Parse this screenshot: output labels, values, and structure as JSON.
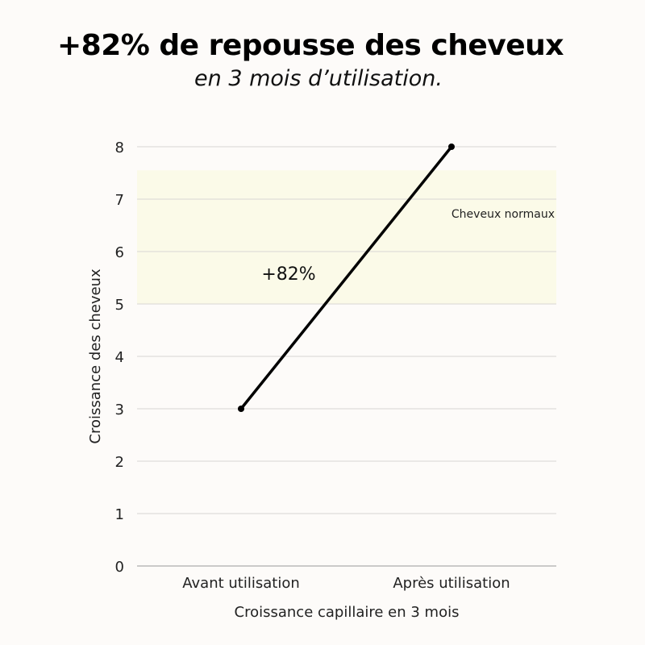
{
  "chart_data": {
    "type": "line",
    "title": "+82% de repousse des cheveux",
    "subtitle": "en 3 mois d’utilisation.",
    "xlabel": "Croissance capillaire en 3 mois",
    "ylabel": "Croissance des cheveux",
    "categories": [
      "Avant utilisation",
      "Après utilisation"
    ],
    "values": [
      3,
      8
    ],
    "ylim": [
      0,
      8
    ],
    "yticks": [
      0,
      1,
      2,
      3,
      4,
      5,
      6,
      7,
      8
    ],
    "grid": true,
    "band": {
      "label": "Cheveux normaux",
      "from": 5,
      "to": 7.55,
      "color": "#fbfae8"
    },
    "annotation": "+82%",
    "line_color": "#000000",
    "background": "#fdfbf9"
  }
}
